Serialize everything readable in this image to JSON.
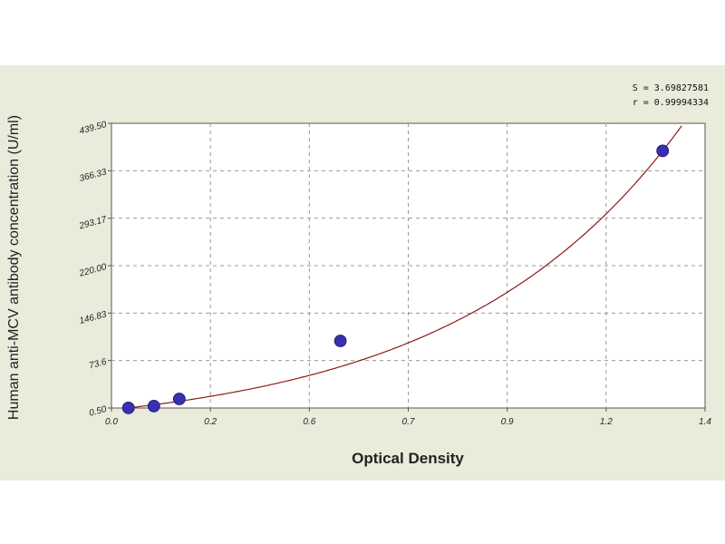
{
  "chart_data": {
    "type": "scatter",
    "xlabel": "Optical Density",
    "ylabel": "Human anti-MCV antibody concentration (U/ml)",
    "xlim": [
      0.0,
      1.4
    ],
    "ylim": [
      0.5,
      439.5
    ],
    "x_ticks": [
      "0.0",
      "0.2",
      "0.6",
      "0.7",
      "0.9",
      "1.2",
      "1.4"
    ],
    "y_ticks": [
      "0.50",
      "73.6",
      "146.83",
      "220.00",
      "293.17",
      "366.33",
      "439.50"
    ],
    "grid": true,
    "points": [
      {
        "x": 0.04,
        "y": 0.6
      },
      {
        "x": 0.1,
        "y": 3.5
      },
      {
        "x": 0.16,
        "y": 14.5
      },
      {
        "x": 0.54,
        "y": 104.0
      },
      {
        "x": 1.3,
        "y": 397.0
      }
    ],
    "fit_curve": {
      "color": "#8b1a1a"
    },
    "point_color": "#3a2fb0",
    "stats": [
      "S = 3.69827581",
      "r = 0.99994334"
    ]
  }
}
